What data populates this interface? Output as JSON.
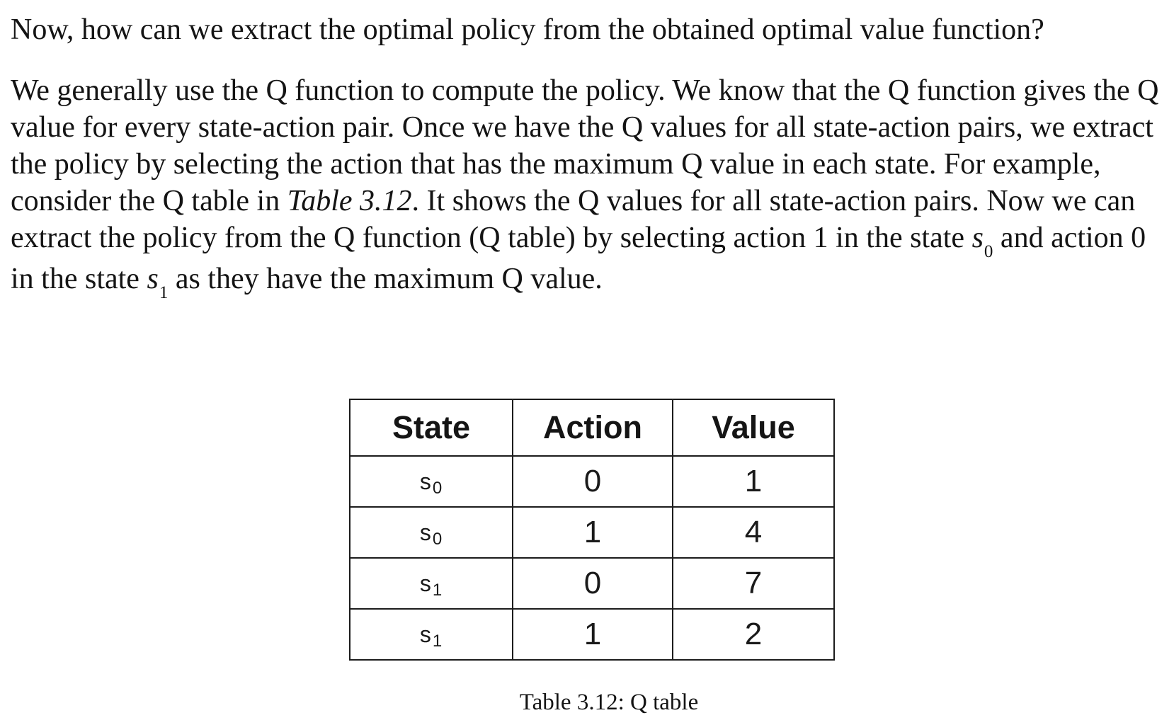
{
  "paragraphs": {
    "intro": "Now, how can we extract the optimal policy from the obtained optimal value function?",
    "body_part1": "We generally use the Q function to compute the policy. We know that the Q function gives the Q value for every state-action pair. Once we have the Q values for all state-action pairs, we extract the policy by selecting the action that has the maximum Q value in each state. For example, consider the Q table in ",
    "body_table_ref": "Table 3.12",
    "body_part2": ". It shows the Q values for all state-action pairs. Now we can extract the policy from the Q function (Q table) by selecting action 1 in the state ",
    "state_symbol_0": "s",
    "state_sub_0": "0",
    "body_part3": " and action 0 in the state ",
    "state_symbol_1": "s",
    "state_sub_1": "1",
    "body_part4": " as they have the maximum Q value."
  },
  "q_table": {
    "headers": {
      "state": "State",
      "action": "Action",
      "value": "Value"
    },
    "rows": [
      {
        "state": "s",
        "state_sub": "0",
        "action": "0",
        "value": "1"
      },
      {
        "state": "s",
        "state_sub": "0",
        "action": "1",
        "value": "4"
      },
      {
        "state": "s",
        "state_sub": "1",
        "action": "0",
        "value": "7"
      },
      {
        "state": "s",
        "state_sub": "1",
        "action": "1",
        "value": "2"
      }
    ],
    "caption": "Table 3.12: Q table"
  }
}
